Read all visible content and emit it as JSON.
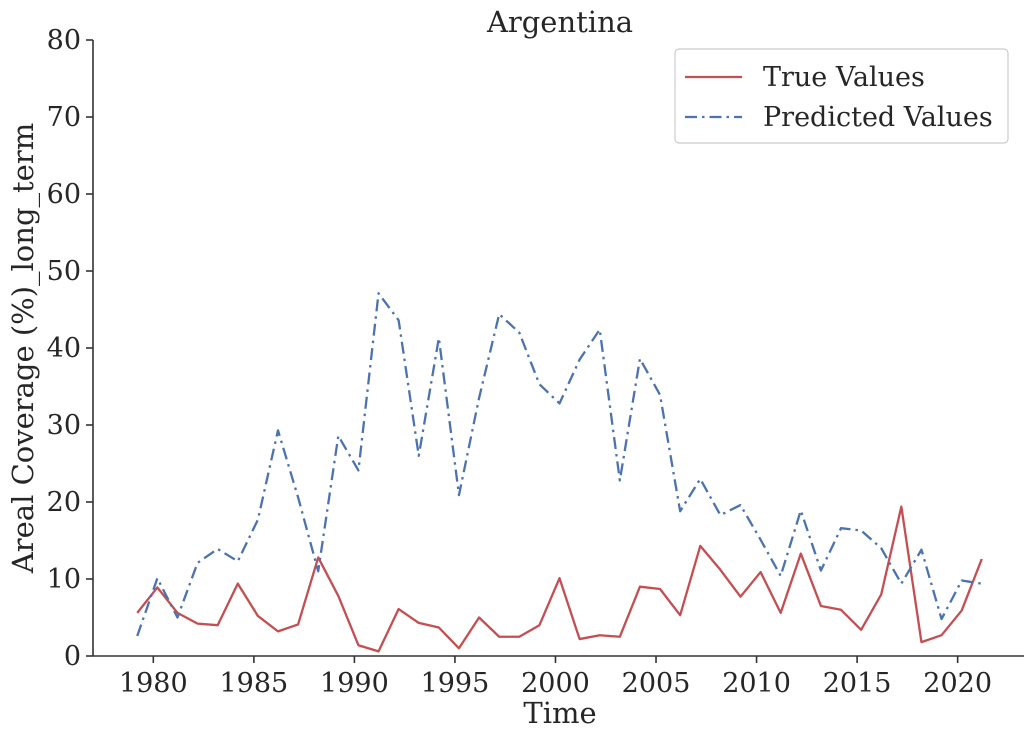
{
  "chart_data": {
    "type": "line",
    "title": "Argentina",
    "xlabel": "Time",
    "ylabel": "Areal Coverage (%)_long_term",
    "xlim": [
      1977,
      2023.3
    ],
    "ylim": [
      0,
      80
    ],
    "xticks": [
      1980,
      1985,
      1990,
      1995,
      2000,
      2005,
      2010,
      2015,
      2020
    ],
    "yticks": [
      0,
      10,
      20,
      30,
      40,
      50,
      60,
      70,
      80
    ],
    "grid": false,
    "legend_position": "top-right",
    "x": [
      1979.2,
      1980.2,
      1981.2,
      1982.2,
      1983.2,
      1984.2,
      1985.2,
      1986.2,
      1987.2,
      1988.2,
      1989.2,
      1990.2,
      1991.2,
      1992.2,
      1993.2,
      1994.2,
      1995.2,
      1996.2,
      1997.2,
      1998.2,
      1999.2,
      2000.2,
      2001.2,
      2002.2,
      2003.2,
      2004.2,
      2005.2,
      2006.2,
      2007.2,
      2008.2,
      2009.2,
      2010.2,
      2011.2,
      2012.2,
      2013.2,
      2014.2,
      2015.2,
      2016.2,
      2017.2,
      2018.2,
      2019.2,
      2020.2,
      2021.2
    ],
    "series": [
      {
        "name": "True Values",
        "color": "#c44e52",
        "style": "solid",
        "values": [
          5.6,
          8.9,
          5.6,
          4.2,
          4.0,
          9.4,
          5.2,
          3.2,
          4.1,
          12.8,
          7.8,
          1.4,
          0.6,
          6.1,
          4.3,
          3.7,
          1.0,
          5.0,
          2.5,
          2.5,
          4.0,
          10.1,
          2.2,
          2.7,
          2.5,
          9.0,
          8.7,
          5.3,
          14.3,
          11.2,
          7.7,
          10.9,
          5.6,
          13.3,
          6.5,
          6.0,
          3.4,
          8.0,
          19.4,
          1.8,
          2.7,
          5.9,
          12.6
        ]
      },
      {
        "name": "Predicted Values",
        "color": "#4c72b0",
        "style": "dashdot",
        "values": [
          2.6,
          10.1,
          5.0,
          12.1,
          13.9,
          12.3,
          17.7,
          29.3,
          20.6,
          11.0,
          28.6,
          24.1,
          47.1,
          43.6,
          26.0,
          41.3,
          20.9,
          33.5,
          44.4,
          42.0,
          35.3,
          32.8,
          38.5,
          42.4,
          22.8,
          38.6,
          33.9,
          18.8,
          23.0,
          18.3,
          19.6,
          15.1,
          10.4,
          18.9,
          11.1,
          16.6,
          16.3,
          14.0,
          9.4,
          13.8,
          4.8,
          9.8,
          9.4
        ]
      }
    ]
  }
}
